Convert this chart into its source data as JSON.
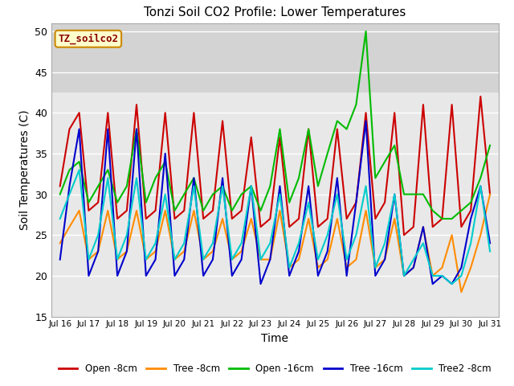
{
  "title": "Tonzi Soil CO2 Profile: Lower Temperatures",
  "xlabel": "Time",
  "ylabel": "Soil Temperatures (C)",
  "ylim": [
    15,
    51
  ],
  "yticks": [
    15,
    20,
    25,
    30,
    35,
    40,
    45,
    50
  ],
  "background_color": "#ffffff",
  "plot_bg_color": "#e8e8e8",
  "band_color": "#d3d3d3",
  "band_ymin": 42.5,
  "band_ymax": 51,
  "watermark_text": "TZ_soilco2",
  "watermark_color": "#8b0000",
  "watermark_bg": "#ffffcc",
  "watermark_border": "#cc8800",
  "series": {
    "open_8cm": {
      "label": "Open -8cm",
      "color": "#cc0000",
      "linewidth": 1.5,
      "x": [
        16.0,
        16.33,
        16.67,
        17.0,
        17.33,
        17.67,
        18.0,
        18.33,
        18.67,
        19.0,
        19.33,
        19.67,
        20.0,
        20.33,
        20.67,
        21.0,
        21.33,
        21.67,
        22.0,
        22.33,
        22.67,
        23.0,
        23.33,
        23.67,
        24.0,
        24.33,
        24.67,
        25.0,
        25.33,
        25.67,
        26.0,
        26.33,
        26.67,
        27.0,
        27.33,
        27.67,
        28.0,
        28.33,
        28.67,
        29.0,
        29.33,
        29.67,
        30.0,
        30.33,
        30.67,
        31.0
      ],
      "y": [
        31,
        38,
        40,
        28,
        29,
        40,
        27,
        28,
        41,
        27,
        28,
        40,
        27,
        28,
        40,
        27,
        28,
        39,
        27,
        28,
        37,
        26,
        27,
        37,
        26,
        27,
        38,
        26,
        27,
        38,
        27,
        29,
        40,
        27,
        29,
        40,
        25,
        26,
        41,
        26,
        27,
        41,
        26,
        28,
        42,
        30
      ]
    },
    "tree_8cm": {
      "label": "Tree -8cm",
      "color": "#ff8c00",
      "linewidth": 1.5,
      "x": [
        16.0,
        16.33,
        16.67,
        17.0,
        17.33,
        17.67,
        18.0,
        18.33,
        18.67,
        19.0,
        19.33,
        19.67,
        20.0,
        20.33,
        20.67,
        21.0,
        21.33,
        21.67,
        22.0,
        22.33,
        22.67,
        23.0,
        23.33,
        23.67,
        24.0,
        24.33,
        24.67,
        25.0,
        25.33,
        25.67,
        26.0,
        26.33,
        26.67,
        27.0,
        27.33,
        27.67,
        28.0,
        28.33,
        28.67,
        29.0,
        29.33,
        29.67,
        30.0,
        30.33,
        30.67,
        31.0
      ],
      "y": [
        24,
        26,
        28,
        22,
        23,
        28,
        22,
        23,
        28,
        22,
        23,
        28,
        22,
        23,
        28,
        22,
        23,
        27,
        22,
        23,
        27,
        22,
        22,
        28,
        21,
        22,
        27,
        21,
        22,
        27,
        21,
        22,
        28,
        21,
        22,
        27,
        20,
        21,
        26,
        20,
        21,
        25,
        18,
        21,
        25,
        30
      ]
    },
    "open_16cm": {
      "label": "Open -16cm",
      "color": "#00bb00",
      "linewidth": 1.5,
      "x": [
        16.0,
        16.33,
        16.67,
        17.0,
        17.33,
        17.67,
        18.0,
        18.33,
        18.67,
        19.0,
        19.33,
        19.67,
        20.0,
        20.33,
        20.67,
        21.0,
        21.33,
        21.67,
        22.0,
        22.33,
        22.67,
        23.0,
        23.33,
        23.67,
        24.0,
        24.33,
        24.67,
        25.0,
        25.33,
        25.67,
        26.0,
        26.33,
        26.67,
        27.0,
        27.33,
        27.67,
        28.0,
        28.33,
        28.67,
        29.0,
        29.33,
        29.67,
        30.0,
        30.33,
        30.67,
        31.0
      ],
      "y": [
        30,
        33,
        34,
        29,
        31,
        33,
        29,
        31,
        38,
        29,
        32,
        34,
        28,
        30,
        32,
        28,
        30,
        31,
        28,
        30,
        31,
        28,
        31,
        38,
        29,
        32,
        38,
        31,
        35,
        39,
        38,
        41,
        50,
        32,
        34,
        36,
        30,
        30,
        30,
        28,
        27,
        27,
        28,
        29,
        32,
        36
      ]
    },
    "tree_16cm": {
      "label": "Tree -16cm",
      "color": "#0000cc",
      "linewidth": 1.5,
      "x": [
        16.0,
        16.33,
        16.67,
        17.0,
        17.33,
        17.67,
        18.0,
        18.33,
        18.67,
        19.0,
        19.33,
        19.67,
        20.0,
        20.33,
        20.67,
        21.0,
        21.33,
        21.67,
        22.0,
        22.33,
        22.67,
        23.0,
        23.33,
        23.67,
        24.0,
        24.33,
        24.67,
        25.0,
        25.33,
        25.67,
        26.0,
        26.33,
        26.67,
        27.0,
        27.33,
        27.67,
        28.0,
        28.33,
        28.67,
        29.0,
        29.33,
        29.67,
        30.0,
        30.33,
        30.67,
        31.0
      ],
      "y": [
        22,
        31,
        38,
        20,
        23,
        38,
        20,
        23,
        38,
        20,
        22,
        35,
        20,
        22,
        32,
        20,
        22,
        32,
        20,
        22,
        31,
        19,
        22,
        31,
        20,
        23,
        31,
        20,
        23,
        32,
        20,
        29,
        39,
        20,
        22,
        30,
        20,
        21,
        26,
        19,
        20,
        19,
        21,
        27,
        31,
        24
      ]
    },
    "tree2_8cm": {
      "label": "Tree2 -8cm",
      "color": "#00cccc",
      "linewidth": 1.5,
      "x": [
        16.0,
        16.33,
        16.67,
        17.0,
        17.33,
        17.67,
        18.0,
        18.33,
        18.67,
        19.0,
        19.33,
        19.67,
        20.0,
        20.33,
        20.67,
        21.0,
        21.33,
        21.67,
        22.0,
        22.33,
        22.67,
        23.0,
        23.33,
        23.67,
        24.0,
        24.33,
        24.67,
        25.0,
        25.33,
        25.67,
        26.0,
        26.33,
        26.67,
        27.0,
        27.33,
        27.67,
        28.0,
        28.33,
        28.67,
        29.0,
        29.33,
        29.67,
        30.0,
        30.33,
        30.67,
        31.0
      ],
      "y": [
        27,
        30,
        33,
        22,
        25,
        32,
        22,
        25,
        32,
        22,
        24,
        30,
        22,
        24,
        31,
        22,
        24,
        31,
        22,
        24,
        31,
        22,
        24,
        30,
        21,
        24,
        29,
        22,
        25,
        30,
        22,
        25,
        31,
        21,
        24,
        30,
        20,
        22,
        24,
        20,
        20,
        19,
        20,
        24,
        31,
        23
      ]
    }
  },
  "xtick_positions": [
    16,
    17,
    18,
    19,
    20,
    21,
    22,
    23,
    24,
    25,
    26,
    27,
    28,
    29,
    30,
    31
  ],
  "xtick_labels": [
    "Jul 16",
    "Jul 17",
    "Jul 18",
    "Jul 19",
    "Jul 20",
    "Jul 21",
    "Jul 22",
    "Jul 23",
    "Jul 24",
    "Jul 25",
    "Jul 26",
    "Jul 27",
    "Jul 28",
    "Jul 29",
    "Jul 30",
    "Jul 31"
  ]
}
